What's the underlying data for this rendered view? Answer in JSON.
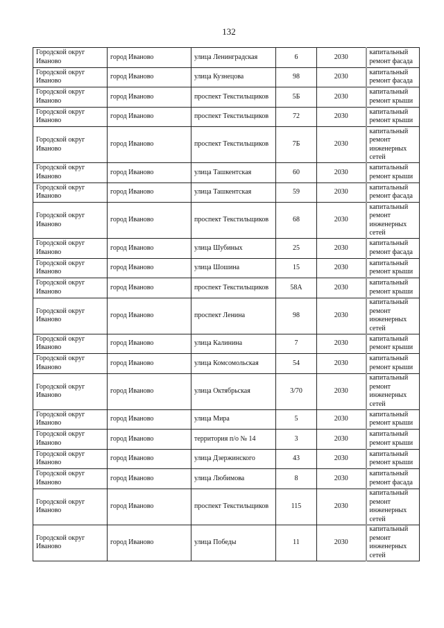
{
  "page_number": "132",
  "rows": [
    [
      "Городской округ Иваново",
      "город Иваново",
      "улица Ленинградская",
      "6",
      "2030",
      "капитальный ремонт фасада"
    ],
    [
      "Городской округ Иваново",
      "город Иваново",
      "улица Кузнецова",
      "98",
      "2030",
      "капитальный ремонт фасада"
    ],
    [
      "Городской округ Иваново",
      "город Иваново",
      "проспект Текстильщиков",
      "5Б",
      "2030",
      "капитальный ремонт крыши"
    ],
    [
      "Городской округ Иваново",
      "город Иваново",
      "проспект Текстильщиков",
      "72",
      "2030",
      "капитальный ремонт крыши"
    ],
    [
      "Городской округ Иваново",
      "город Иваново",
      "проспект Текстильщиков",
      "7Б",
      "2030",
      "капитальный ремонт инженерных сетей"
    ],
    [
      "Городской округ Иваново",
      "город Иваново",
      "улица Ташкентская",
      "60",
      "2030",
      "капитальный ремонт крыши"
    ],
    [
      "Городской округ Иваново",
      "город Иваново",
      "улица Ташкентская",
      "59",
      "2030",
      "капитальный ремонт фасада"
    ],
    [
      "Городской округ Иваново",
      "город Иваново",
      "проспект Текстильщиков",
      "68",
      "2030",
      "капитальный ремонт инженерных сетей"
    ],
    [
      "Городской округ Иваново",
      "город Иваново",
      "улица Шубиных",
      "25",
      "2030",
      "капитальный ремонт фасада"
    ],
    [
      "Городской округ Иваново",
      "город Иваново",
      "улица Шошина",
      "15",
      "2030",
      "капитальный ремонт крыши"
    ],
    [
      "Городской округ Иваново",
      "город Иваново",
      "проспект Текстильщиков",
      "58А",
      "2030",
      "капитальный ремонт крыши"
    ],
    [
      "Городской округ Иваново",
      "город Иваново",
      "проспект Ленина",
      "98",
      "2030",
      "капитальный ремонт инженерных сетей"
    ],
    [
      "Городской округ Иваново",
      "город Иваново",
      "улица Калинина",
      "7",
      "2030",
      "капитальный ремонт крыши"
    ],
    [
      "Городской округ Иваново",
      "город Иваново",
      "улица Комсомольская",
      "54",
      "2030",
      "капитальный ремонт крыши"
    ],
    [
      "Городской округ Иваново",
      "город Иваново",
      "улица Октябрьская",
      "3/70",
      "2030",
      "капитальный ремонт инженерных сетей"
    ],
    [
      "Городской округ Иваново",
      "город Иваново",
      "улица Мира",
      "5",
      "2030",
      "капитальный ремонт крыши"
    ],
    [
      "Городской округ Иваново",
      "город Иваново",
      "территория п/о № 14",
      "3",
      "2030",
      "капитальный ремонт крыши"
    ],
    [
      "Городской округ Иваново",
      "город Иваново",
      "улица Дзержинского",
      "43",
      "2030",
      "капитальный ремонт крыши"
    ],
    [
      "Городской округ Иваново",
      "город Иваново",
      "улица Любимова",
      "8",
      "2030",
      "капитальный ремонт фасада"
    ],
    [
      "Городской округ Иваново",
      "город Иваново",
      "проспект Текстильщиков",
      "115",
      "2030",
      "капитальный ремонт инженерных сетей"
    ],
    [
      "Городской округ Иваново",
      "город Иваново",
      "улица Победы",
      "11",
      "2030",
      "капитальный ремонт инженерных сетей"
    ]
  ]
}
